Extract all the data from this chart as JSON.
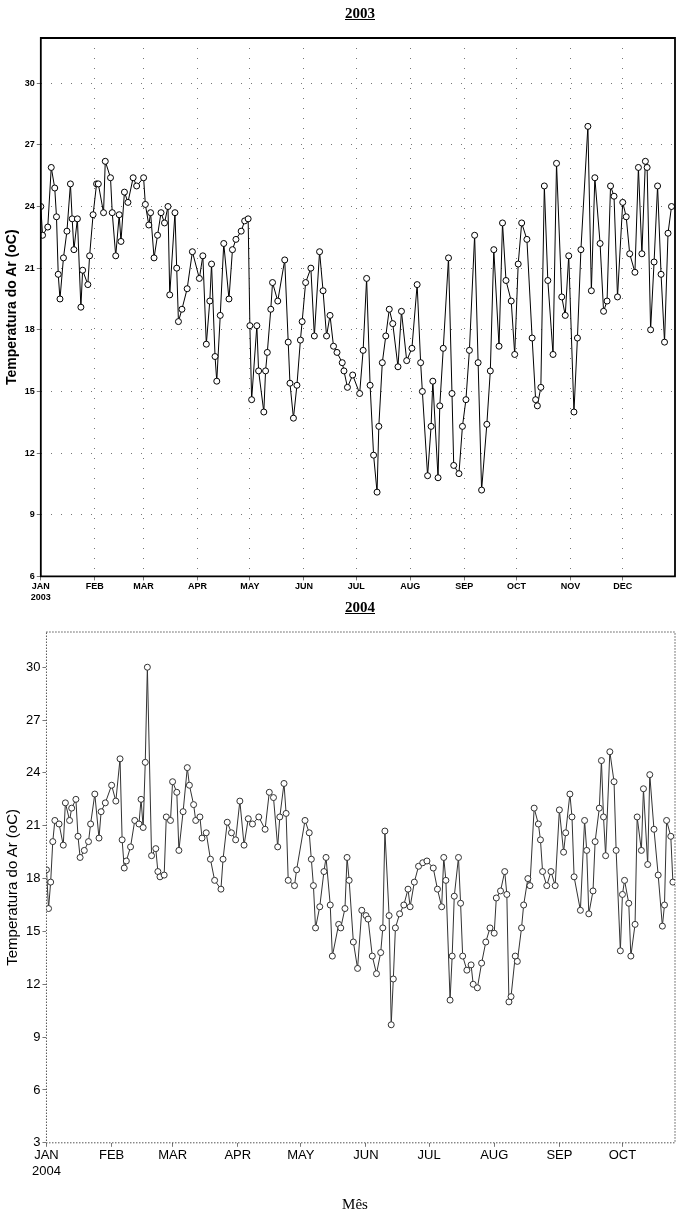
{
  "chart_data": [
    {
      "type": "line",
      "title": "2003",
      "ylabel": "Temperatura do Ar (oC)",
      "marker": "circle",
      "grid": true,
      "xlim": [
        "2003-01-01",
        "2003-12-31"
      ],
      "ylim": [
        6,
        32.2
      ],
      "yticks": [
        6,
        9,
        12,
        15,
        18,
        21,
        24,
        27,
        30
      ],
      "xticks": [
        {
          "value": "2003-01-01",
          "label": "JAN\n2003"
        },
        {
          "value": "2003-02-01",
          "label": "FEB"
        },
        {
          "value": "2003-03-01",
          "label": "MAR"
        },
        {
          "value": "2003-04-01",
          "label": "APR"
        },
        {
          "value": "2003-05-01",
          "label": "MAY"
        },
        {
          "value": "2003-06-01",
          "label": "JUN"
        },
        {
          "value": "2003-07-01",
          "label": "JUL"
        },
        {
          "value": "2003-08-01",
          "label": "AUG"
        },
        {
          "value": "2003-09-01",
          "label": "SEP"
        },
        {
          "value": "2003-10-01",
          "label": "OCT"
        },
        {
          "value": "2003-11-01",
          "label": "NOV"
        },
        {
          "value": "2003-12-01",
          "label": "DEC"
        }
      ],
      "x": [
        "2003-01-01",
        "2003-01-02",
        "2003-01-05",
        "2003-01-07",
        "2003-01-09",
        "2003-01-10",
        "2003-01-11",
        "2003-01-12",
        "2003-01-14",
        "2003-01-16",
        "2003-01-18",
        "2003-01-19",
        "2003-01-20",
        "2003-01-22",
        "2003-01-24",
        "2003-01-25",
        "2003-01-28",
        "2003-01-29",
        "2003-01-31",
        "2003-02-02",
        "2003-02-03",
        "2003-02-06",
        "2003-02-07",
        "2003-02-10",
        "2003-02-11",
        "2003-02-13",
        "2003-02-15",
        "2003-02-16",
        "2003-02-18",
        "2003-02-20",
        "2003-02-23",
        "2003-02-25",
        "2003-03-01",
        "2003-03-02",
        "2003-03-04",
        "2003-03-05",
        "2003-03-07",
        "2003-03-09",
        "2003-03-11",
        "2003-03-13",
        "2003-03-15",
        "2003-03-16",
        "2003-03-19",
        "2003-03-20",
        "2003-03-21",
        "2003-03-23",
        "2003-03-26",
        "2003-03-29",
        "2003-04-02",
        "2003-04-04",
        "2003-04-06",
        "2003-04-08",
        "2003-04-09",
        "2003-04-11",
        "2003-04-12",
        "2003-04-14",
        "2003-04-16",
        "2003-04-19",
        "2003-04-21",
        "2003-04-23",
        "2003-04-26",
        "2003-04-28",
        "2003-04-30",
        "2003-05-01",
        "2003-05-02",
        "2003-05-05",
        "2003-05-06",
        "2003-05-09",
        "2003-05-10",
        "2003-05-11",
        "2003-05-13",
        "2003-05-14",
        "2003-05-17",
        "2003-05-21",
        "2003-05-23",
        "2003-05-24",
        "2003-05-26",
        "2003-05-28",
        "2003-05-30",
        "2003-05-31",
        "2003-06-02",
        "2003-06-05",
        "2003-06-07",
        "2003-06-10",
        "2003-06-12",
        "2003-06-14",
        "2003-06-16",
        "2003-06-18",
        "2003-06-20",
        "2003-06-23",
        "2003-06-24",
        "2003-06-26",
        "2003-06-29",
        "2003-07-03",
        "2003-07-05",
        "2003-07-07",
        "2003-07-09",
        "2003-07-11",
        "2003-07-13",
        "2003-07-14",
        "2003-07-16",
        "2003-07-18",
        "2003-07-20",
        "2003-07-22",
        "2003-07-25",
        "2003-07-27",
        "2003-07-30",
        "2003-08-02",
        "2003-08-05",
        "2003-08-07",
        "2003-08-08",
        "2003-08-11",
        "2003-08-13",
        "2003-08-14",
        "2003-08-17",
        "2003-08-18",
        "2003-08-20",
        "2003-08-23",
        "2003-08-25",
        "2003-08-26",
        "2003-08-29",
        "2003-08-31",
        "2003-09-02",
        "2003-09-04",
        "2003-09-07",
        "2003-09-09",
        "2003-09-11",
        "2003-09-14",
        "2003-09-16",
        "2003-09-18",
        "2003-09-21",
        "2003-09-23",
        "2003-09-25",
        "2003-09-28",
        "2003-09-30",
        "2003-10-02",
        "2003-10-04",
        "2003-10-07",
        "2003-10-10",
        "2003-10-12",
        "2003-10-13",
        "2003-10-15",
        "2003-10-17",
        "2003-10-19",
        "2003-10-22",
        "2003-10-24",
        "2003-10-27",
        "2003-10-29",
        "2003-10-31",
        "2003-11-03",
        "2003-11-05",
        "2003-11-07",
        "2003-11-11",
        "2003-11-13",
        "2003-11-15",
        "2003-11-18",
        "2003-11-20",
        "2003-11-22",
        "2003-11-24",
        "2003-11-26",
        "2003-11-28",
        "2003-12-01",
        "2003-12-03",
        "2003-12-05",
        "2003-12-08",
        "2003-12-10",
        "2003-12-12",
        "2003-12-14",
        "2003-12-15",
        "2003-12-17",
        "2003-12-19",
        "2003-12-21",
        "2003-12-23",
        "2003-12-25",
        "2003-12-27",
        "2003-12-29"
      ],
      "series": [
        {
          "color": "#000000",
          "values": [
            24.0,
            22.6,
            23.0,
            25.9,
            24.9,
            23.5,
            20.7,
            19.5,
            21.5,
            22.8,
            25.1,
            23.4,
            21.9,
            23.4,
            19.1,
            20.9,
            20.2,
            21.6,
            23.6,
            25.1,
            25.1,
            23.7,
            26.2,
            25.4,
            23.7,
            21.6,
            23.6,
            22.3,
            24.7,
            24.2,
            25.4,
            25.0,
            25.4,
            24.1,
            23.1,
            23.7,
            21.5,
            22.6,
            23.7,
            23.2,
            24.0,
            19.7,
            23.7,
            21.0,
            18.4,
            19.0,
            20.0,
            21.8,
            20.5,
            21.6,
            17.3,
            19.4,
            21.2,
            16.7,
            15.5,
            18.7,
            22.2,
            19.5,
            21.9,
            22.4,
            22.8,
            23.3,
            23.4,
            18.2,
            14.6,
            18.2,
            16.0,
            14.0,
            16.0,
            16.9,
            19.0,
            20.3,
            19.4,
            21.4,
            17.4,
            15.4,
            13.7,
            15.3,
            17.5,
            18.4,
            20.3,
            21.0,
            17.7,
            21.8,
            19.9,
            17.7,
            18.7,
            17.2,
            16.9,
            16.4,
            16.0,
            15.2,
            15.8,
            14.9,
            17.0,
            20.5,
            15.3,
            11.9,
            10.1,
            13.3,
            16.4,
            17.7,
            19.0,
            18.3,
            16.2,
            18.9,
            16.5,
            17.1,
            20.2,
            16.4,
            15.0,
            10.9,
            13.3,
            15.5,
            10.8,
            14.3,
            17.1,
            21.5,
            14.9,
            11.4,
            11.0,
            13.3,
            14.6,
            17.0,
            22.6,
            16.4,
            10.2,
            13.4,
            16.0,
            21.9,
            17.2,
            23.2,
            20.4,
            19.4,
            16.8,
            21.2,
            23.2,
            22.4,
            17.6,
            14.6,
            14.3,
            15.2,
            25.0,
            20.4,
            16.8,
            26.1,
            19.6,
            18.7,
            21.6,
            14.0,
            17.6,
            21.9,
            27.9,
            19.9,
            25.4,
            22.2,
            18.9,
            19.4,
            25.0,
            24.5,
            19.6,
            24.2,
            23.5,
            21.7,
            20.8,
            25.9,
            21.7,
            26.2,
            25.9,
            18.0,
            21.3,
            25.0,
            20.7,
            17.4,
            22.7,
            24.0
          ]
        }
      ]
    },
    {
      "type": "line",
      "title": "2004",
      "ylabel": "Temperatura do Ar (oC)",
      "xlabel": "Mês",
      "marker": "circle",
      "xlim": [
        "2004-01-01",
        "2004-10-26"
      ],
      "ylim": [
        3,
        32
      ],
      "yticks": [
        3,
        6,
        9,
        12,
        15,
        18,
        21,
        24,
        27,
        30
      ],
      "xticks": [
        {
          "value": "2004-01-01",
          "label": "JAN\n2004"
        },
        {
          "value": "2004-02-01",
          "label": "FEB"
        },
        {
          "value": "2004-03-01",
          "label": "MAR"
        },
        {
          "value": "2004-04-01",
          "label": "APR"
        },
        {
          "value": "2004-05-01",
          "label": "MAY"
        },
        {
          "value": "2004-06-01",
          "label": "JUN"
        },
        {
          "value": "2004-07-01",
          "label": "JUL"
        },
        {
          "value": "2004-08-01",
          "label": "AUG"
        },
        {
          "value": "2004-09-01",
          "label": "SEP"
        },
        {
          "value": "2004-10-01",
          "label": "OCT"
        }
      ],
      "x": [
        "2004-01-01",
        "2004-01-02",
        "2004-01-03",
        "2004-01-04",
        "2004-01-05",
        "2004-01-07",
        "2004-01-09",
        "2004-01-10",
        "2004-01-12",
        "2004-01-13",
        "2004-01-15",
        "2004-01-16",
        "2004-01-17",
        "2004-01-19",
        "2004-01-21",
        "2004-01-22",
        "2004-01-24",
        "2004-01-26",
        "2004-01-27",
        "2004-01-29",
        "2004-02-01",
        "2004-02-03",
        "2004-02-05",
        "2004-02-06",
        "2004-02-07",
        "2004-02-08",
        "2004-02-10",
        "2004-02-12",
        "2004-02-14",
        "2004-02-15",
        "2004-02-16",
        "2004-02-17",
        "2004-02-18",
        "2004-02-20",
        "2004-02-22",
        "2004-02-23",
        "2004-02-24",
        "2004-02-26",
        "2004-02-27",
        "2004-02-29",
        "2004-03-01",
        "2004-03-03",
        "2004-03-04",
        "2004-03-06",
        "2004-03-08",
        "2004-03-09",
        "2004-03-11",
        "2004-03-12",
        "2004-03-14",
        "2004-03-15",
        "2004-03-17",
        "2004-03-19",
        "2004-03-21",
        "2004-03-24",
        "2004-03-25",
        "2004-03-27",
        "2004-03-29",
        "2004-03-31",
        "2004-04-02",
        "2004-04-04",
        "2004-04-06",
        "2004-04-08",
        "2004-04-11",
        "2004-04-14",
        "2004-04-16",
        "2004-04-18",
        "2004-04-20",
        "2004-04-21",
        "2004-04-23",
        "2004-04-24",
        "2004-04-25",
        "2004-04-28",
        "2004-04-29",
        "2004-05-03",
        "2004-05-05",
        "2004-05-06",
        "2004-05-07",
        "2004-05-08",
        "2004-05-10",
        "2004-05-12",
        "2004-05-13",
        "2004-05-15",
        "2004-05-16",
        "2004-05-19",
        "2004-05-20",
        "2004-05-22",
        "2004-05-23",
        "2004-05-24",
        "2004-05-26",
        "2004-05-28",
        "2004-05-30",
        "2004-06-01",
        "2004-06-02",
        "2004-06-04",
        "2004-06-06",
        "2004-06-08",
        "2004-06-09",
        "2004-06-10",
        "2004-06-12",
        "2004-06-13",
        "2004-06-14",
        "2004-06-15",
        "2004-06-17",
        "2004-06-19",
        "2004-06-21",
        "2004-06-22",
        "2004-06-24",
        "2004-06-26",
        "2004-06-28",
        "2004-06-30",
        "2004-07-03",
        "2004-07-05",
        "2004-07-07",
        "2004-07-08",
        "2004-07-09",
        "2004-07-11",
        "2004-07-12",
        "2004-07-13",
        "2004-07-15",
        "2004-07-16",
        "2004-07-17",
        "2004-07-19",
        "2004-07-21",
        "2004-07-22",
        "2004-07-24",
        "2004-07-26",
        "2004-07-28",
        "2004-07-30",
        "2004-08-01",
        "2004-08-02",
        "2004-08-04",
        "2004-08-06",
        "2004-08-07",
        "2004-08-08",
        "2004-08-09",
        "2004-08-11",
        "2004-08-12",
        "2004-08-14",
        "2004-08-15",
        "2004-08-17",
        "2004-08-18",
        "2004-08-20",
        "2004-08-22",
        "2004-08-23",
        "2004-08-24",
        "2004-08-26",
        "2004-08-28",
        "2004-08-30",
        "2004-09-01",
        "2004-09-03",
        "2004-09-04",
        "2004-09-06",
        "2004-09-07",
        "2004-09-08",
        "2004-09-11",
        "2004-09-13",
        "2004-09-14",
        "2004-09-15",
        "2004-09-17",
        "2004-09-18",
        "2004-09-20",
        "2004-09-21",
        "2004-09-22",
        "2004-09-23",
        "2004-09-25",
        "2004-09-27",
        "2004-09-28",
        "2004-09-30",
        "2004-10-01",
        "2004-10-02",
        "2004-10-04",
        "2004-10-05",
        "2004-10-07",
        "2004-10-08",
        "2004-10-10",
        "2004-10-11",
        "2004-10-13",
        "2004-10-14",
        "2004-10-16",
        "2004-10-18",
        "2004-10-20",
        "2004-10-21",
        "2004-10-22",
        "2004-10-24",
        "2004-10-25"
      ],
      "series": [
        {
          "color": "#333333",
          "values": [
            18.5,
            16.3,
            17.8,
            20.1,
            21.3,
            21.1,
            19.9,
            22.3,
            21.3,
            22.0,
            22.5,
            20.4,
            19.2,
            19.6,
            20.1,
            21.1,
            22.8,
            20.3,
            21.8,
            22.3,
            23.3,
            22.4,
            24.8,
            20.2,
            18.6,
            19.0,
            19.8,
            21.3,
            21.1,
            22.5,
            20.9,
            24.6,
            30.0,
            19.3,
            19.7,
            18.4,
            18.1,
            18.2,
            21.5,
            21.3,
            23.5,
            22.9,
            19.6,
            21.8,
            24.3,
            23.3,
            22.2,
            21.3,
            21.5,
            20.3,
            20.6,
            19.1,
            17.9,
            17.4,
            19.1,
            21.2,
            20.6,
            20.2,
            22.4,
            19.9,
            21.4,
            21.1,
            21.5,
            20.8,
            22.9,
            22.6,
            19.8,
            21.5,
            23.4,
            21.7,
            17.9,
            17.6,
            18.5,
            21.3,
            20.6,
            19.1,
            17.6,
            15.2,
            16.4,
            18.4,
            19.2,
            16.5,
            13.6,
            15.4,
            15.2,
            16.3,
            19.2,
            17.9,
            14.4,
            12.9,
            16.2,
            15.9,
            15.7,
            13.6,
            12.6,
            13.8,
            15.2,
            20.7,
            15.9,
            9.7,
            12.3,
            15.2,
            16.0,
            16.5,
            17.4,
            16.4,
            17.8,
            18.7,
            18.9,
            19.0,
            18.6,
            17.4,
            16.4,
            19.2,
            17.9,
            11.1,
            13.6,
            17.0,
            19.2,
            16.6,
            13.6,
            12.8,
            13.1,
            12.0,
            11.8,
            13.2,
            14.4,
            15.2,
            14.9,
            16.9,
            17.3,
            18.4,
            17.1,
            11.0,
            11.3,
            13.6,
            13.3,
            15.2,
            16.5,
            18.0,
            17.6,
            22.0,
            21.1,
            20.2,
            18.4,
            17.6,
            18.4,
            17.6,
            21.9,
            19.5,
            20.6,
            22.8,
            21.5,
            18.1,
            16.2,
            21.3,
            19.6,
            16.0,
            17.3,
            20.1,
            22.0,
            24.7,
            21.5,
            19.3,
            25.2,
            23.5,
            19.6,
            13.9,
            17.1,
            17.9,
            16.6,
            13.6,
            15.4,
            21.5,
            19.6,
            23.1,
            18.8,
            23.9,
            20.8,
            18.2,
            15.3,
            16.5,
            21.3,
            20.4,
            17.8
          ]
        }
      ]
    }
  ]
}
